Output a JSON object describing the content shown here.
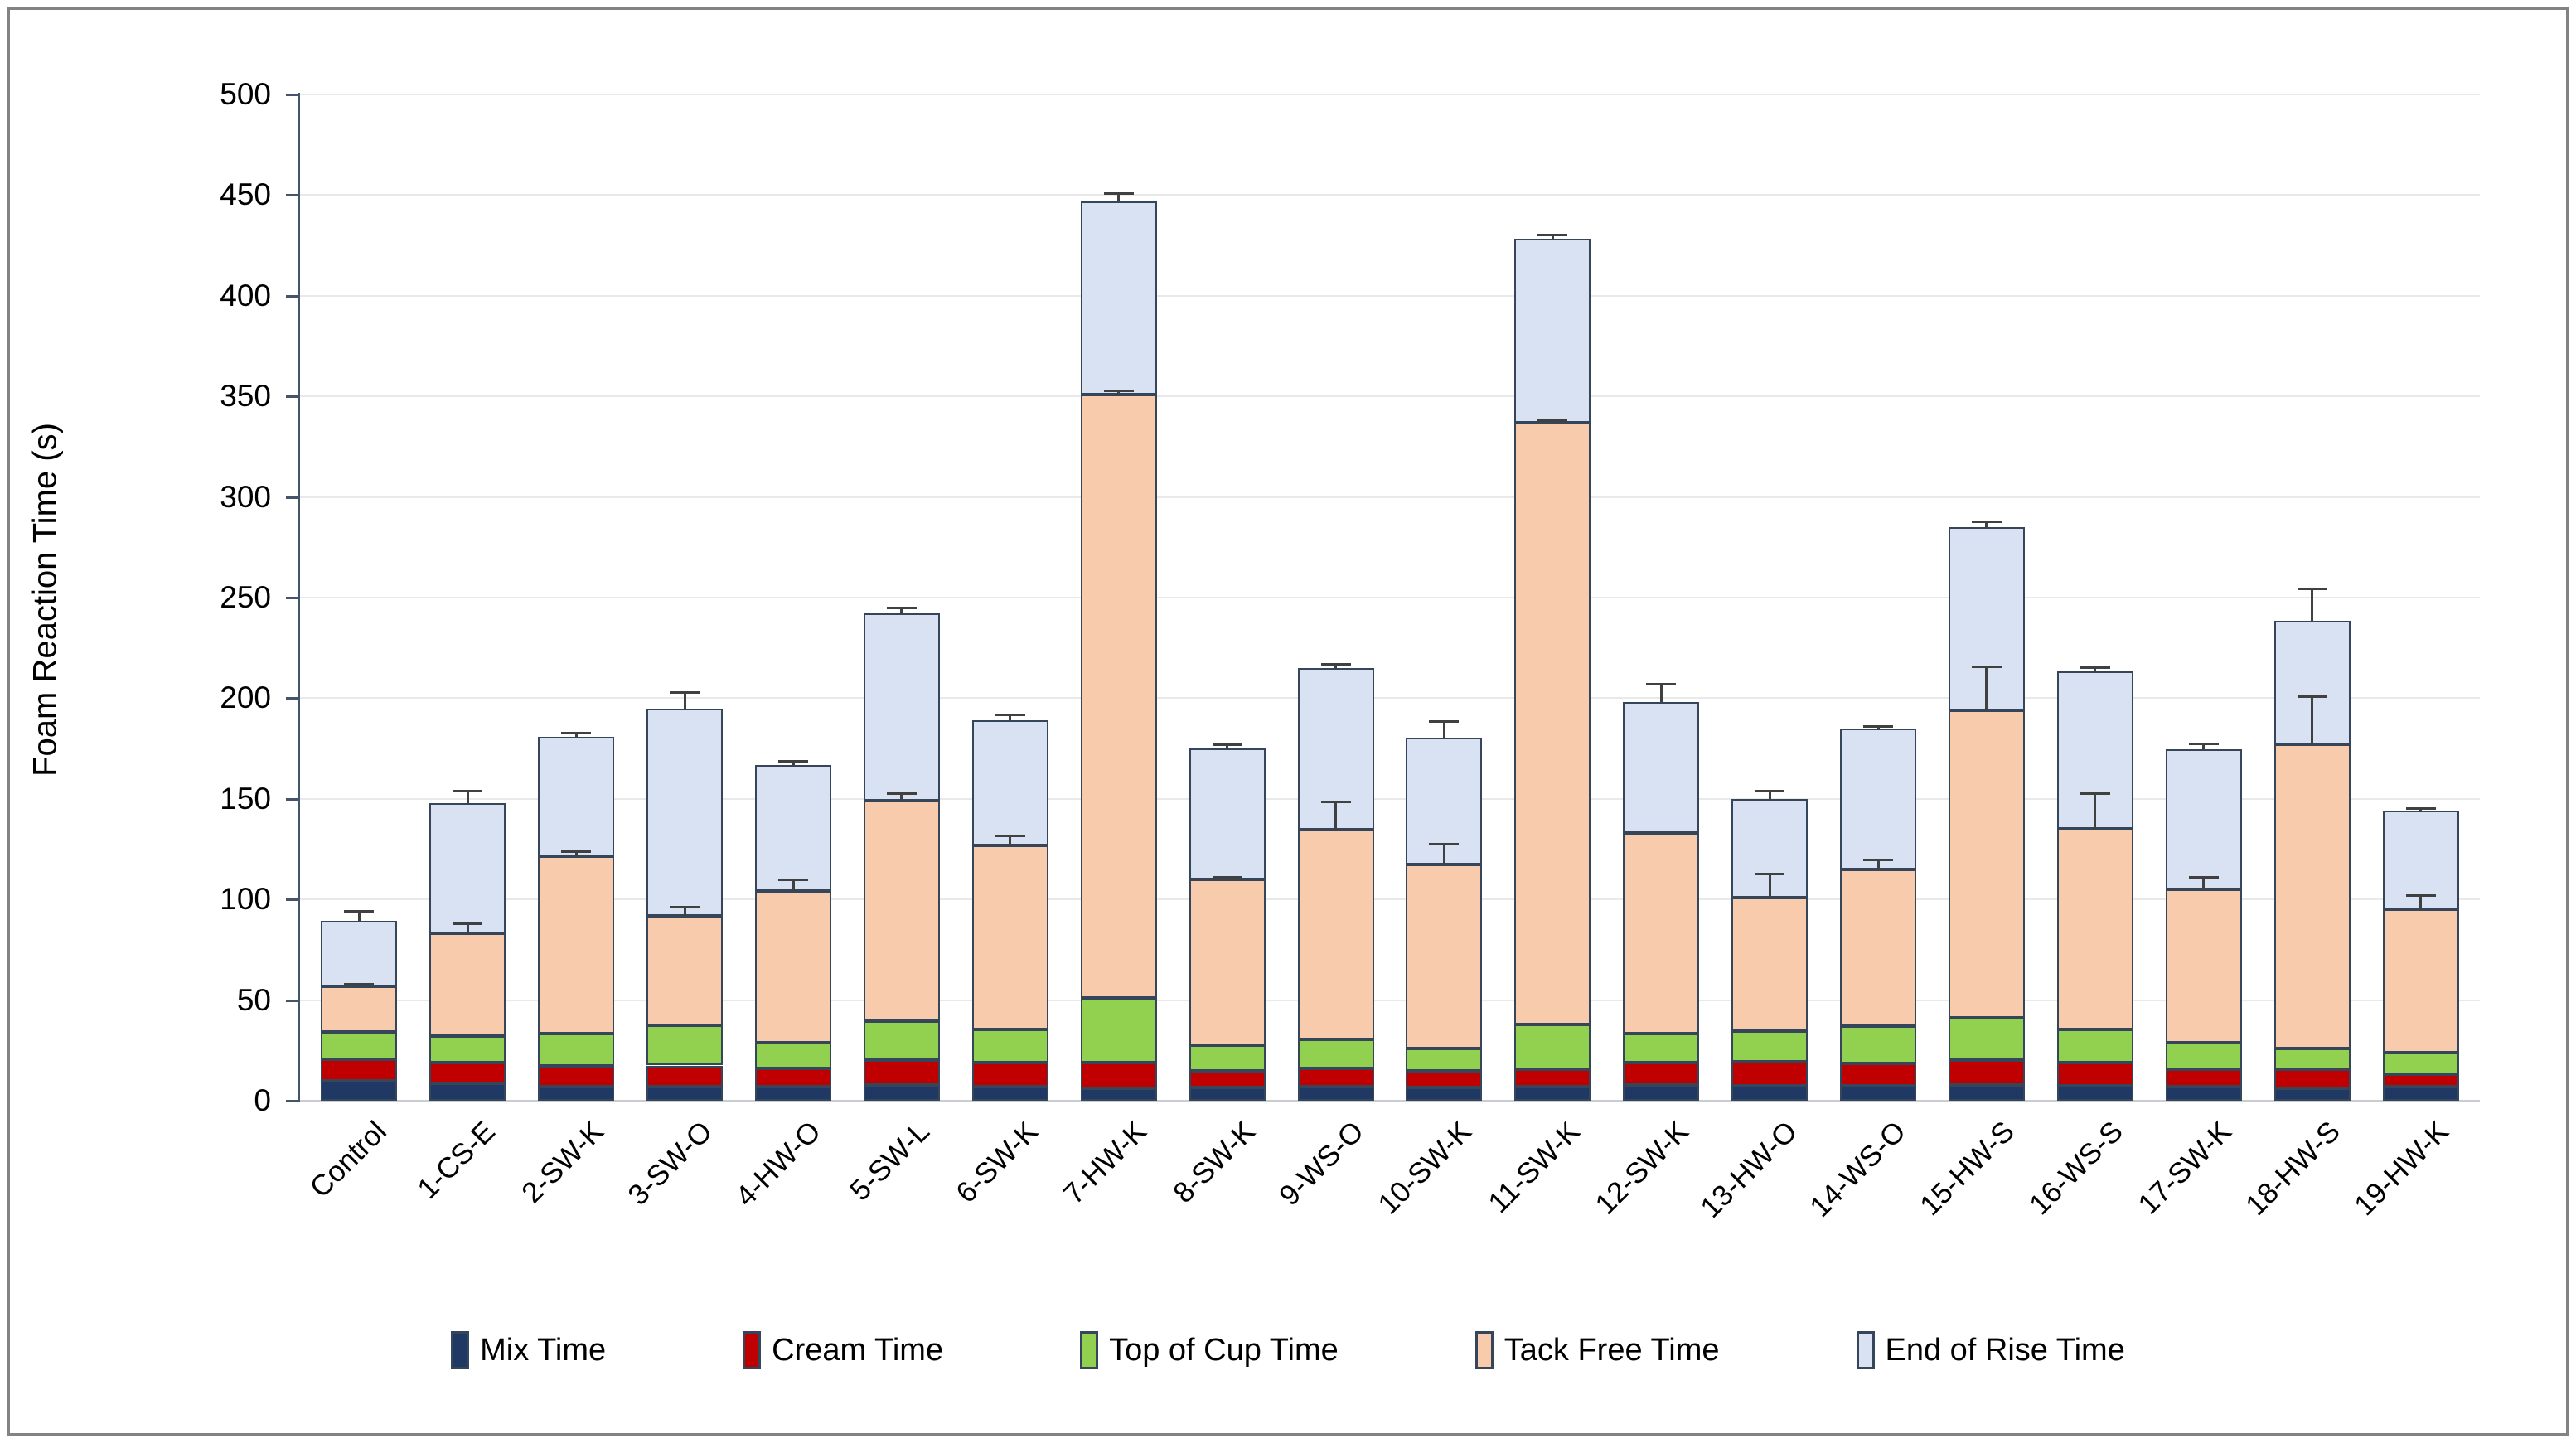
{
  "chart_data": {
    "type": "bar",
    "variant": "stacked-vertical",
    "title": "",
    "xlabel": "",
    "ylabel": "Foam Reaction Time (s)",
    "ylim": [
      0,
      500
    ],
    "ytick_step": 50,
    "ytick_labels": [
      "0",
      "50",
      "100",
      "150",
      "200",
      "250",
      "300",
      "350",
      "400",
      "450",
      "500"
    ],
    "grid": true,
    "legend_position": "bottom",
    "categories": [
      "Control",
      "1-CS-E",
      "2-SW-K",
      "3-SW-O",
      "4-HW-O",
      "5-SW-L",
      "6-SW-K",
      "7-HW-K",
      "8-SW-K",
      "9-WS-O",
      "10-SW-K",
      "11-SW-K",
      "12-SW-K",
      "13-HW-O",
      "14-WS-O",
      "15-HW-S",
      "16-WS-S",
      "17-SW-K",
      "18-HW-S",
      "19-HW-K"
    ],
    "series": [
      {
        "name": "Mix Time",
        "color": "#1F3864",
        "values": [
          10,
          8.5,
          7,
          7,
          7,
          8,
          7,
          6,
          6.5,
          7,
          6.5,
          7,
          8,
          7.5,
          7.5,
          8,
          7.5,
          7,
          6,
          7
        ]
      },
      {
        "name": "Cream Time",
        "color": "#C00000",
        "values": [
          10.5,
          10.5,
          10.5,
          10.5,
          9,
          12,
          12,
          13,
          8.5,
          9,
          8.5,
          8.5,
          11,
          12,
          11,
          12,
          11.5,
          8.5,
          9.5,
          6
        ]
      },
      {
        "name": "Top of Cup Time",
        "color": "#92D050",
        "values": [
          13.5,
          13,
          16,
          20,
          13,
          19.5,
          16.5,
          32,
          12.5,
          14.5,
          11,
          22.5,
          14.5,
          15,
          18.5,
          21,
          16.5,
          13.5,
          10.5,
          11
        ]
      },
      {
        "name": "Tack Free Time",
        "color": "#F8CBAD",
        "values": [
          23,
          51,
          88,
          54.5,
          75,
          109.5,
          91.5,
          300,
          82.5,
          104,
          91.5,
          299,
          99.5,
          66.5,
          78,
          153,
          99.5,
          76,
          151,
          71
        ]
      },
      {
        "name": "End of Rise Time",
        "color": "#D9E2F3",
        "values": [
          32.5,
          65,
          59.5,
          103,
          63,
          93,
          62,
          96,
          65,
          80.5,
          63,
          91.5,
          65,
          49,
          70,
          91,
          78.5,
          69.5,
          61.5,
          49
        ]
      }
    ],
    "stack_totals": [
      89.5,
      148,
      181,
      195,
      167,
      242,
      189,
      447,
      175,
      215,
      180.5,
      428.5,
      198,
      150,
      185,
      285,
      213.5,
      174.5,
      238.5,
      144
    ],
    "error_bars": {
      "tack_free_top_plus": [
        1,
        5,
        2.5,
        4.5,
        6,
        4,
        5,
        2,
        1,
        14,
        10,
        1,
        0,
        12,
        5,
        22,
        18,
        6,
        24,
        7
      ],
      "end_of_rise_top_plus": [
        5,
        6,
        2,
        8,
        2,
        3,
        3,
        4,
        2,
        2,
        8,
        2,
        9,
        4,
        1,
        3,
        2,
        3,
        16,
        1.5
      ]
    }
  },
  "colors": {
    "bar_border": "#35455A",
    "error_bar": "#404040",
    "gridline": "#E9E9E9",
    "y_axis_line": "#44546A",
    "x_axis_line": "#C9CDD1",
    "frame_border": "#838383",
    "background": "#FFFFFF"
  }
}
